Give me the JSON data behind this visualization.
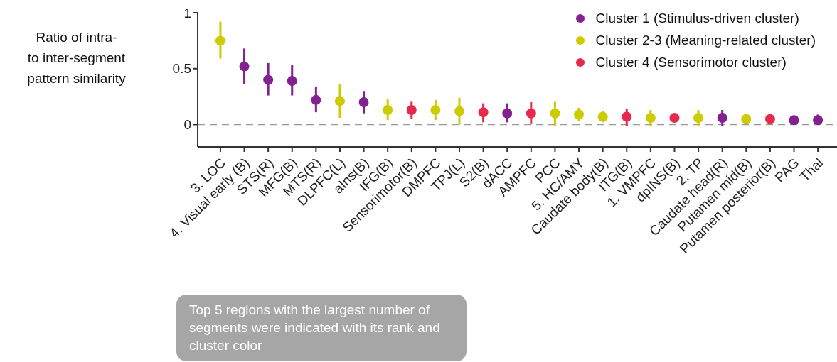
{
  "chart_data": {
    "type": "scatter",
    "ylabel": "Ratio of intra-\nto inter-segment\npattern similarity",
    "categories": [
      "3. LOC",
      "4. Visual early (B)",
      "STS(R)",
      "MFG(B)",
      "MTS(R)",
      "DLPFC(L)",
      "aIns(B)",
      "IFG(B)",
      "Sensorimotor(B)",
      "DMPFC",
      "TPJ(L)",
      "S2(B)",
      "dACC",
      "AMPFC",
      "PCC",
      "5. HC/AMY",
      "Caudate body(B)",
      "ITG(B)",
      "1. VMPFC",
      "dpINS(B)",
      "2. TP",
      "Caudate head(R)",
      "Putamen mid(B)",
      "Putamen posterior(B)",
      "PAG",
      "Thal"
    ],
    "series": [
      {
        "name": "Cluster 1 (Stimulus-driven cluster)",
        "color": "#82218f",
        "values": [
          null,
          0.52,
          0.4,
          0.39,
          0.22,
          null,
          0.2,
          null,
          null,
          null,
          null,
          null,
          0.1,
          null,
          null,
          null,
          null,
          null,
          null,
          null,
          null,
          0.06,
          null,
          null,
          0.04,
          0.04
        ],
        "errors": [
          null,
          [
            0.36,
            0.68
          ],
          [
            0.26,
            0.55
          ],
          [
            0.26,
            0.53
          ],
          [
            0.11,
            0.34
          ],
          null,
          [
            0.1,
            0.3
          ],
          null,
          null,
          null,
          null,
          null,
          [
            0.02,
            0.19
          ],
          null,
          null,
          null,
          null,
          null,
          null,
          null,
          null,
          [
            -0.01,
            0.13
          ],
          null,
          null,
          null,
          [
            0.0,
            0.09
          ]
        ]
      },
      {
        "name": "Cluster 2-3 (Meaning-related cluster)",
        "color": "#cccc00",
        "values": [
          0.75,
          null,
          null,
          null,
          null,
          0.21,
          null,
          0.13,
          null,
          0.13,
          0.12,
          null,
          null,
          null,
          0.1,
          0.09,
          0.07,
          null,
          0.06,
          null,
          0.06,
          null,
          0.05,
          null,
          null,
          null
        ],
        "errors": [
          [
            0.59,
            0.92
          ],
          null,
          null,
          null,
          null,
          [
            0.06,
            0.36
          ],
          null,
          [
            0.04,
            0.23
          ],
          null,
          [
            0.04,
            0.22
          ],
          [
            0.0,
            0.24
          ],
          null,
          null,
          null,
          [
            -0.01,
            0.21
          ],
          [
            0.03,
            0.15
          ],
          [
            0.02,
            0.12
          ],
          null,
          [
            -0.01,
            0.13
          ],
          null,
          [
            -0.01,
            0.13
          ],
          null,
          null,
          null,
          null,
          null
        ]
      },
      {
        "name": "Cluster 4 (Sensorimotor cluster)",
        "color": "#e8294b",
        "values": [
          null,
          null,
          null,
          null,
          null,
          null,
          null,
          null,
          0.13,
          null,
          null,
          0.11,
          null,
          0.1,
          null,
          null,
          null,
          0.07,
          null,
          0.06,
          null,
          null,
          null,
          0.05,
          null,
          null
        ],
        "errors": [
          null,
          null,
          null,
          null,
          null,
          null,
          null,
          null,
          [
            0.05,
            0.21
          ],
          null,
          null,
          [
            0.02,
            0.19
          ],
          null,
          [
            0.01,
            0.2
          ],
          null,
          null,
          null,
          [
            -0.01,
            0.14
          ],
          null,
          null,
          null,
          null,
          null,
          null,
          null,
          null
        ]
      }
    ],
    "ylim": [
      -0.2,
      1
    ],
    "yticks": [
      0,
      0.5,
      1
    ],
    "ref_lines": [
      {
        "axis": "y",
        "value": 0,
        "color": "#999999",
        "line_style": "dashed"
      }
    ],
    "legend": "top right",
    "grid": false,
    "marker": "circle",
    "annotations": [
      "Top 5 regions with the largest number of segments were indicated with its rank and cluster color"
    ]
  }
}
